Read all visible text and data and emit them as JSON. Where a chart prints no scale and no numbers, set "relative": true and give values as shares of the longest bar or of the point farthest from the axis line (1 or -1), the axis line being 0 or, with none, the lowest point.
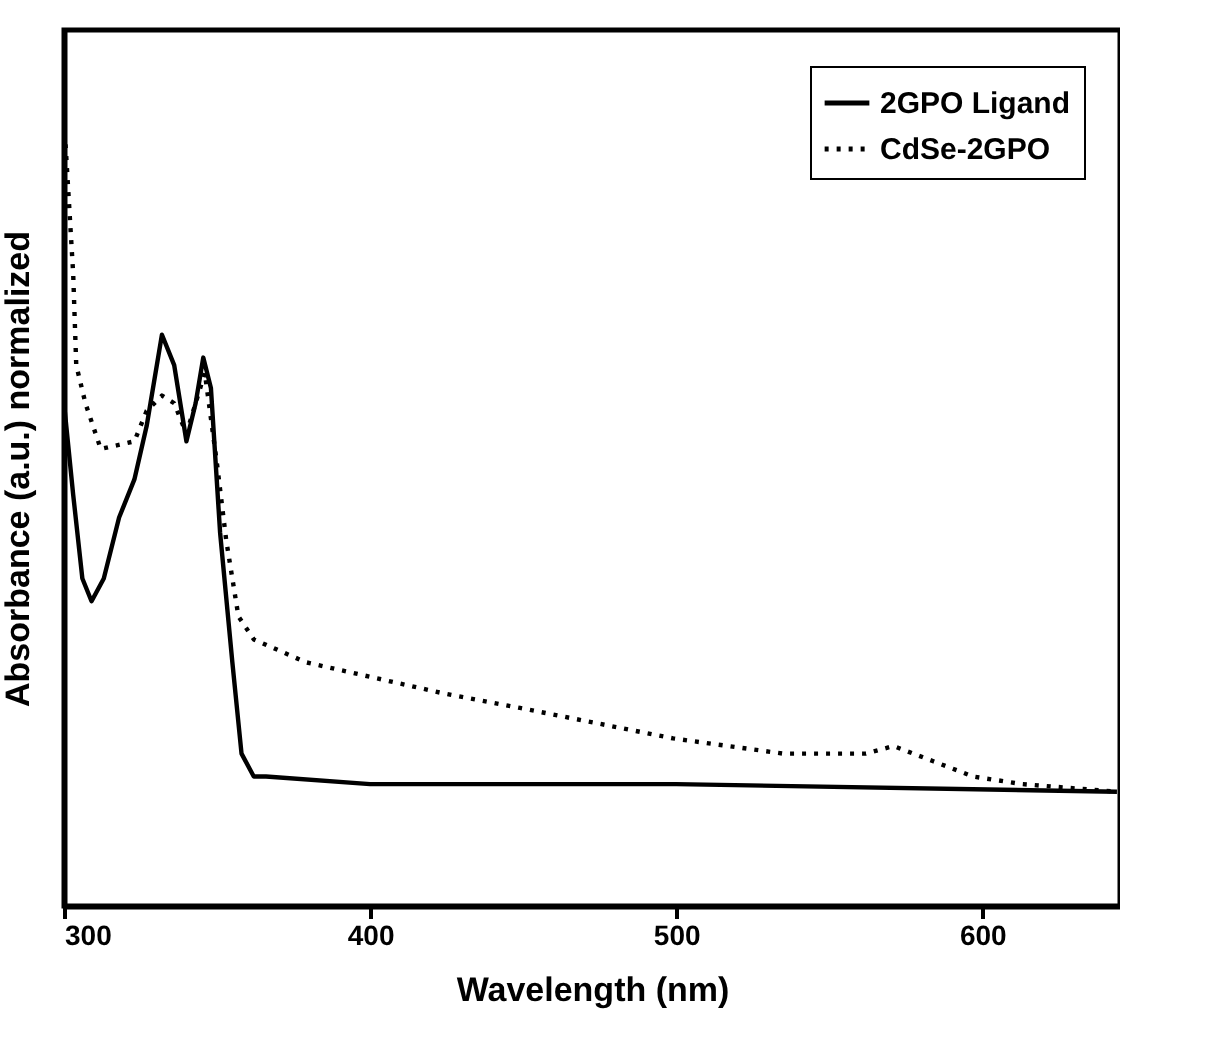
{
  "chart_data": {
    "type": "line",
    "xlabel": "Wavelength (nm)",
    "ylabel": "Absorbance (a.u.) normalized",
    "relative": true,
    "xlim": [
      300,
      645
    ],
    "xticks": [
      300,
      400,
      500,
      600
    ],
    "tick_labels": "x",
    "grid": false,
    "legend": "top right",
    "marker": "none",
    "series": [
      {
        "name": "2GPO Ligand",
        "color": "#000000",
        "line_style": "solid",
        "x": [
          300,
          303,
          306,
          309,
          313,
          318,
          323,
          327,
          332,
          336,
          340,
          343,
          345.5,
          348,
          351,
          355,
          358,
          362,
          366,
          400,
          500,
          644
        ],
        "values": [
          0.66,
          0.54,
          0.43,
          0.4,
          0.43,
          0.51,
          0.56,
          0.63,
          0.75,
          0.71,
          0.61,
          0.66,
          0.72,
          0.68,
          0.49,
          0.32,
          0.2,
          0.17,
          0.17,
          0.16,
          0.16,
          0.15
        ]
      },
      {
        "name": "CdSe-2GPO",
        "color": "#000000",
        "line_style": "dotted",
        "x": [
          300.5,
          303,
          304,
          307,
          312,
          323,
          327,
          332,
          336,
          340,
          346,
          350,
          353,
          357,
          362,
          379,
          423,
          449,
          499,
          535,
          562,
          571,
          584,
          597,
          613,
          644
        ],
        "values": [
          1.0,
          0.83,
          0.71,
          0.66,
          0.6,
          0.61,
          0.65,
          0.67,
          0.66,
          0.62,
          0.7,
          0.58,
          0.48,
          0.38,
          0.35,
          0.32,
          0.28,
          0.26,
          0.22,
          0.2,
          0.2,
          0.21,
          0.19,
          0.17,
          0.16,
          0.15
        ]
      }
    ]
  }
}
